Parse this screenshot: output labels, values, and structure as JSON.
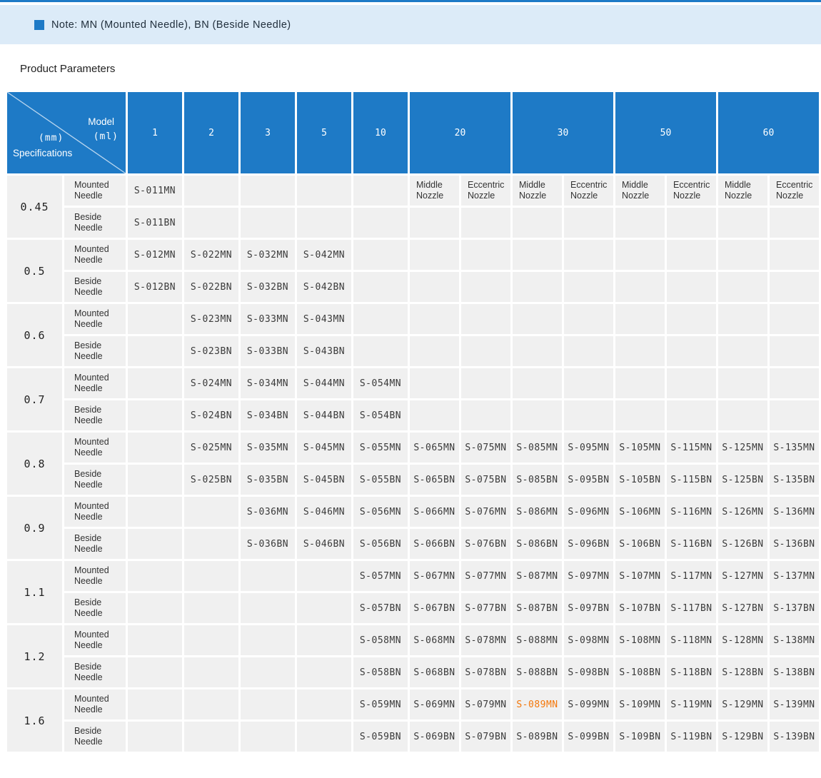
{
  "note": {
    "text": "Note: MN (Mounted Needle), BN (Beside Needle)"
  },
  "title": "Product Parameters",
  "colors": {
    "accent_blue": "#1e7ac6",
    "banner_blue": "#dcebf8",
    "cell_gray": "#f0f0f0",
    "highlight_orange": "#f4770a"
  },
  "table": {
    "corner": {
      "model": "Model",
      "ml": "(ml)",
      "mm": "(mm)",
      "specifications": "Specifications"
    },
    "ml_columns": [
      {
        "label": "1"
      },
      {
        "label": "2"
      },
      {
        "label": "3"
      },
      {
        "label": "5"
      },
      {
        "label": "10"
      },
      {
        "label": "20"
      },
      {
        "label": "30"
      },
      {
        "label": "50"
      },
      {
        "label": "60"
      }
    ],
    "row_labels": {
      "mounted": "Mounted Needle",
      "beside": "Beside Needle"
    },
    "nozzle_pair": [
      "Middle Nozzle",
      "Eccentric Nozzle"
    ],
    "highlight_code": "S-089MN",
    "groups": [
      {
        "spec": "0.45",
        "nozzle_labels_in_mounted": true,
        "mounted": [
          "S-011MN",
          "",
          "",
          "",
          "",
          "",
          "",
          "",
          "",
          "",
          "",
          "",
          ""
        ],
        "beside": [
          "S-011BN",
          "",
          "",
          "",
          "",
          "",
          "",
          "",
          "",
          "",
          "",
          "",
          ""
        ]
      },
      {
        "spec": "0.5",
        "mounted": [
          "S-012MN",
          "S-022MN",
          "S-032MN",
          "S-042MN",
          "",
          "",
          "",
          "",
          "",
          "",
          "",
          "",
          ""
        ],
        "beside": [
          "S-012BN",
          "S-022BN",
          "S-032BN",
          "S-042BN",
          "",
          "",
          "",
          "",
          "",
          "",
          "",
          "",
          ""
        ]
      },
      {
        "spec": "0.6",
        "mounted": [
          "",
          "S-023MN",
          "S-033MN",
          "S-043MN",
          "",
          "",
          "",
          "",
          "",
          "",
          "",
          "",
          ""
        ],
        "beside": [
          "",
          "S-023BN",
          "S-033BN",
          "S-043BN",
          "",
          "",
          "",
          "",
          "",
          "",
          "",
          "",
          ""
        ]
      },
      {
        "spec": "0.7",
        "mounted": [
          "",
          "S-024MN",
          "S-034MN",
          "S-044MN",
          "S-054MN",
          "",
          "",
          "",
          "",
          "",
          "",
          "",
          ""
        ],
        "beside": [
          "",
          "S-024BN",
          "S-034BN",
          "S-044BN",
          "S-054BN",
          "",
          "",
          "",
          "",
          "",
          "",
          "",
          ""
        ]
      },
      {
        "spec": "0.8",
        "mounted": [
          "",
          "S-025MN",
          "S-035MN",
          "S-045MN",
          "S-055MN",
          "S-065MN",
          "S-075MN",
          "S-085MN",
          "S-095MN",
          "S-105MN",
          "S-115MN",
          "S-125MN",
          "S-135MN"
        ],
        "beside": [
          "",
          "S-025BN",
          "S-035BN",
          "S-045BN",
          "S-055BN",
          "S-065BN",
          "S-075BN",
          "S-085BN",
          "S-095BN",
          "S-105BN",
          "S-115BN",
          "S-125BN",
          "S-135BN"
        ]
      },
      {
        "spec": "0.9",
        "mounted": [
          "",
          "",
          "S-036MN",
          "S-046MN",
          "S-056MN",
          "S-066MN",
          "S-076MN",
          "S-086MN",
          "S-096MN",
          "S-106MN",
          "S-116MN",
          "S-126MN",
          "S-136MN"
        ],
        "beside": [
          "",
          "",
          "S-036BN",
          "S-046BN",
          "S-056BN",
          "S-066BN",
          "S-076BN",
          "S-086BN",
          "S-096BN",
          "S-106BN",
          "S-116BN",
          "S-126BN",
          "S-136BN"
        ]
      },
      {
        "spec": "1.1",
        "mounted": [
          "",
          "",
          "",
          "",
          "S-057MN",
          "S-067MN",
          "S-077MN",
          "S-087MN",
          "S-097MN",
          "S-107MN",
          "S-117MN",
          "S-127MN",
          "S-137MN"
        ],
        "beside": [
          "",
          "",
          "",
          "",
          "S-057BN",
          "S-067BN",
          "S-077BN",
          "S-087BN",
          "S-097BN",
          "S-107BN",
          "S-117BN",
          "S-127BN",
          "S-137BN"
        ]
      },
      {
        "spec": "1.2",
        "mounted": [
          "",
          "",
          "",
          "",
          "S-058MN",
          "S-068MN",
          "S-078MN",
          "S-088MN",
          "S-098MN",
          "S-108MN",
          "S-118MN",
          "S-128MN",
          "S-138MN"
        ],
        "beside": [
          "",
          "",
          "",
          "",
          "S-058BN",
          "S-068BN",
          "S-078BN",
          "S-088BN",
          "S-098BN",
          "S-108BN",
          "S-118BN",
          "S-128BN",
          "S-138BN"
        ]
      },
      {
        "spec": "1.6",
        "mounted": [
          "",
          "",
          "",
          "",
          "S-059MN",
          "S-069MN",
          "S-079MN",
          "S-089MN",
          "S-099MN",
          "S-109MN",
          "S-119MN",
          "S-129MN",
          "S-139MN"
        ],
        "beside": [
          "",
          "",
          "",
          "",
          "S-059BN",
          "S-069BN",
          "S-079BN",
          "S-089BN",
          "S-099BN",
          "S-109BN",
          "S-119BN",
          "S-129BN",
          "S-139BN"
        ]
      }
    ]
  }
}
